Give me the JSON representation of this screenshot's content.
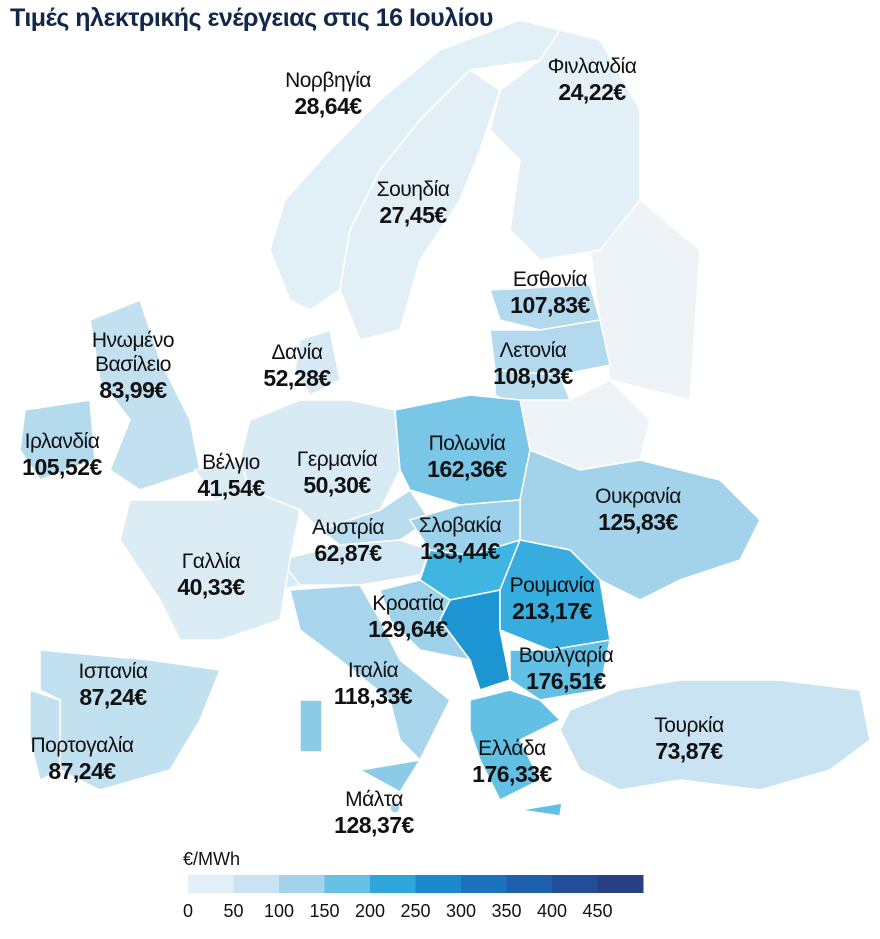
{
  "chart_data": {
    "type": "choropleth",
    "title": "Τιμές ηλεκτρικής ενέργειας στις 16 Ιουλίου",
    "unit_label": "€/MWh",
    "categories": [
      "Νορβηγία",
      "Φινλανδία",
      "Σουηδία",
      "Εσθονία",
      "Λετονία",
      "Δανία",
      "Ηνωμένο Βασίλειο",
      "Ιρλανδία",
      "Βέλγιο",
      "Γερμανία",
      "Πολωνία",
      "Ουκρανία",
      "Σλοβακία",
      "Αυστρία",
      "Γαλλία",
      "Ρουμανία",
      "Κροατία",
      "Ιταλία",
      "Βουλγαρία",
      "Ισπανία",
      "Πορτογαλία",
      "Ελλάδα",
      "Τουρκία",
      "Μάλτα"
    ],
    "values": [
      28.64,
      24.22,
      27.45,
      107.83,
      108.03,
      52.28,
      83.99,
      105.52,
      41.54,
      50.3,
      162.36,
      125.83,
      133.44,
      62.87,
      40.33,
      213.17,
      129.64,
      118.33,
      176.51,
      87.24,
      87.24,
      176.33,
      73.87,
      128.37
    ],
    "value_labels": [
      "28,64€",
      "24,22€",
      "27,45€",
      "107,83€",
      "108,03€",
      "52,28€",
      "83,99€",
      "105,52€",
      "41,54€",
      "50,30€",
      "162,36€",
      "125,83€",
      "133,44€",
      "62,87€",
      "40,33€",
      "213,17€",
      "129,64€",
      "118,33€",
      "176,51€",
      "87,24€",
      "87,24€",
      "176,33€",
      "73,87€",
      "128,37€"
    ],
    "clim": [
      0,
      500
    ],
    "cticks": [
      0,
      50,
      100,
      150,
      200,
      250,
      300,
      350,
      400,
      450
    ],
    "colorscale": [
      "#eef5fa",
      "#d8eaf4",
      "#b9dcef",
      "#8ccbe8",
      "#3fb6e2",
      "#1e95d3",
      "#1a7cc4",
      "#1a69b3",
      "#1f55a0",
      "#26448c",
      "#2b3a7a"
    ]
  }
}
